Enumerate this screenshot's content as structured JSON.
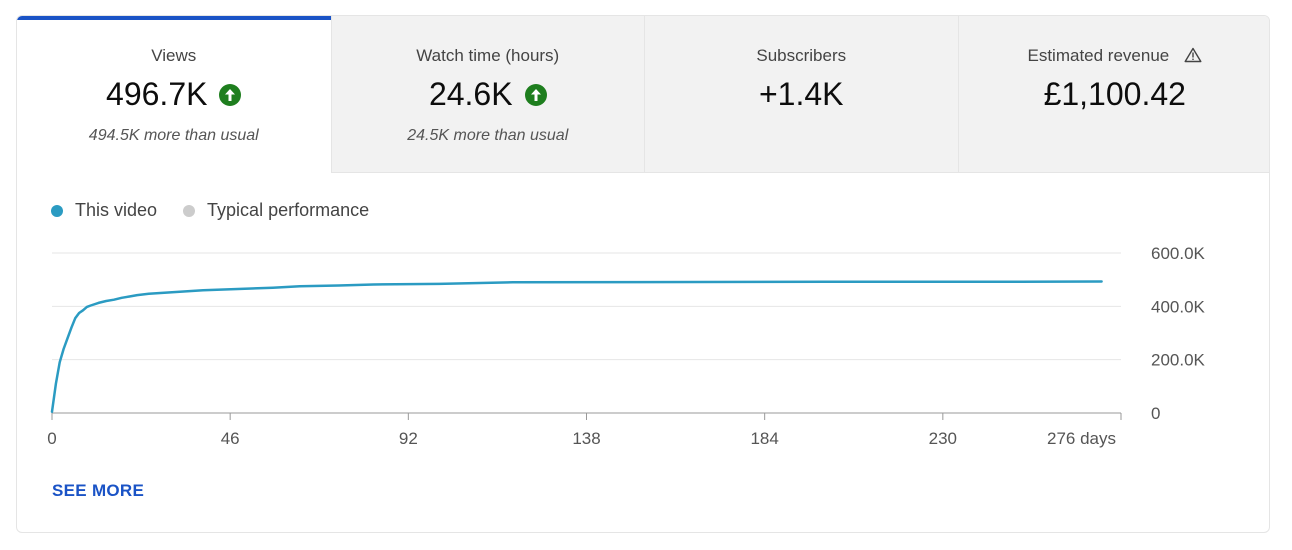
{
  "tabs": [
    {
      "label": "Views",
      "value": "496.7K",
      "trend": "up",
      "note": "494.5K more than usual"
    },
    {
      "label": "Watch time (hours)",
      "value": "24.6K",
      "trend": "up",
      "note": "24.5K more than usual"
    },
    {
      "label": "Subscribers",
      "value": "+1.4K",
      "trend": "",
      "note": ""
    },
    {
      "label": "Estimated revenue",
      "value": "£1,100.42",
      "trend": "",
      "note": "",
      "icon": "warning-icon"
    }
  ],
  "colors": {
    "accent": "#1a53c6",
    "this_video": "#2b9bc2",
    "typical": "#cccccc",
    "trend_up": "#1e7e1e"
  },
  "see_more": "SEE MORE",
  "chart_data": {
    "type": "line",
    "legend": [
      "This video",
      "Typical performance"
    ],
    "x_tick_labels": [
      "0",
      "46",
      "92",
      "138",
      "184",
      "230",
      "276 days"
    ],
    "x_ticks": [
      0,
      46,
      92,
      138,
      184,
      230,
      276
    ],
    "y_tick_labels": [
      "600.0K",
      "400.0K",
      "200.0K",
      "0"
    ],
    "y_ticks": [
      600000,
      400000,
      200000,
      0
    ],
    "xlim": [
      0,
      276
    ],
    "ylim": [
      0,
      600000
    ],
    "grid": true,
    "series": [
      {
        "name": "This video",
        "color": "#2b9bc2",
        "x": [
          0,
          1,
          2,
          3,
          4,
          5,
          6,
          7,
          8,
          9,
          10,
          12,
          14,
          16,
          18,
          20,
          22,
          25,
          28,
          33,
          39,
          48,
          57,
          64,
          74,
          83,
          100,
          119,
          150,
          200,
          250,
          271
        ],
        "y": [
          5000,
          110000,
          190000,
          240000,
          280000,
          320000,
          355000,
          375000,
          385000,
          398000,
          403000,
          413000,
          420000,
          425000,
          432000,
          437000,
          442000,
          447000,
          450000,
          455000,
          460000,
          465000,
          470000,
          475000,
          478000,
          482000,
          484000,
          490000,
          491000,
          492000,
          492000,
          493000
        ]
      }
    ]
  }
}
